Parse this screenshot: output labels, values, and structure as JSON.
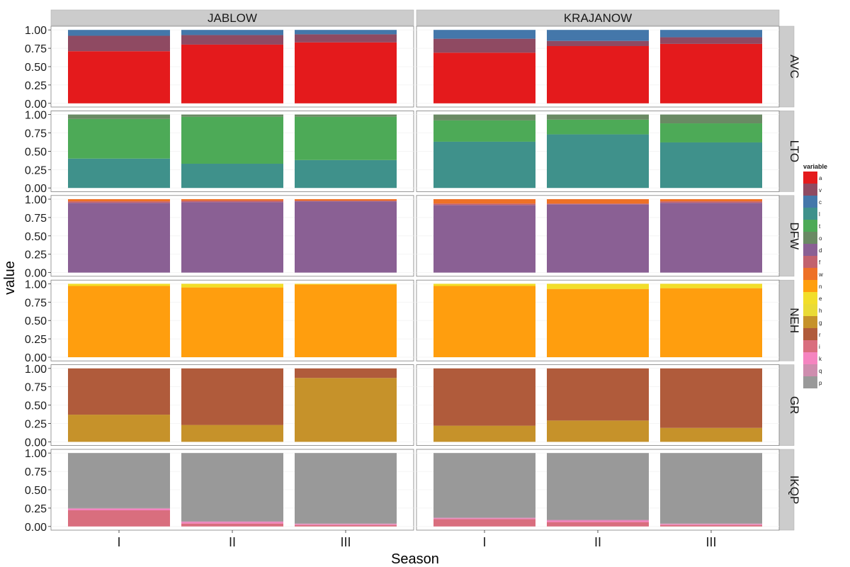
{
  "chart_data": {
    "type": "bar",
    "stacked": true,
    "xlabel": "Season",
    "ylabel": "value",
    "ylim": [
      0,
      1
    ],
    "yticks": [
      "0.00",
      "0.25",
      "0.50",
      "0.75",
      "1.00"
    ],
    "categories": [
      "I",
      "II",
      "III"
    ],
    "columns": [
      "JABLOW",
      "KRAJANOW"
    ],
    "rows": [
      "AVC",
      "LTO",
      "DFW",
      "NEH",
      "GR",
      "IKQP"
    ],
    "legend": {
      "title": "variable",
      "position": "right",
      "items": [
        {
          "name": "a",
          "color": "#E41A1C"
        },
        {
          "name": "v",
          "color": "#8F4A62"
        },
        {
          "name": "c",
          "color": "#4477AA"
        },
        {
          "name": "l",
          "color": "#3F918B"
        },
        {
          "name": "t",
          "color": "#4DAA57"
        },
        {
          "name": "o",
          "color": "#6A8A64"
        },
        {
          "name": "d",
          "color": "#8A6094"
        },
        {
          "name": "f",
          "color": "#C2626E"
        },
        {
          "name": "w",
          "color": "#EE7127"
        },
        {
          "name": "n",
          "color": "#FF9E0E"
        },
        {
          "name": "e",
          "color": "#F2DE2A"
        },
        {
          "name": "h",
          "color": "#EADB35"
        },
        {
          "name": "g",
          "color": "#C6922A"
        },
        {
          "name": "r",
          "color": "#B05B3B"
        },
        {
          "name": "i",
          "color": "#D96E7E"
        },
        {
          "name": "k",
          "color": "#F584C0"
        },
        {
          "name": "q",
          "color": "#CE8DAE"
        },
        {
          "name": "p",
          "color": "#999999"
        }
      ]
    },
    "panels": [
      {
        "row": "AVC",
        "col": "JABLOW",
        "bars": [
          {
            "category": "I",
            "stack": [
              [
                "a",
                0.71
              ],
              [
                "v",
                0.21
              ],
              [
                "c",
                0.08
              ]
            ]
          },
          {
            "category": "II",
            "stack": [
              [
                "a",
                0.8
              ],
              [
                "v",
                0.13
              ],
              [
                "c",
                0.07
              ]
            ]
          },
          {
            "category": "III",
            "stack": [
              [
                "a",
                0.83
              ],
              [
                "v",
                0.11
              ],
              [
                "c",
                0.06
              ]
            ]
          }
        ]
      },
      {
        "row": "AVC",
        "col": "KRAJANOW",
        "bars": [
          {
            "category": "I",
            "stack": [
              [
                "a",
                0.69
              ],
              [
                "v",
                0.19
              ],
              [
                "c",
                0.12
              ]
            ]
          },
          {
            "category": "II",
            "stack": [
              [
                "a",
                0.78
              ],
              [
                "v",
                0.07
              ],
              [
                "c",
                0.15
              ]
            ]
          },
          {
            "category": "III",
            "stack": [
              [
                "a",
                0.81
              ],
              [
                "v",
                0.09
              ],
              [
                "c",
                0.1
              ]
            ]
          }
        ]
      },
      {
        "row": "LTO",
        "col": "JABLOW",
        "bars": [
          {
            "category": "I",
            "stack": [
              [
                "l",
                0.4
              ],
              [
                "t",
                0.54
              ],
              [
                "o",
                0.06
              ]
            ]
          },
          {
            "category": "II",
            "stack": [
              [
                "l",
                0.33
              ],
              [
                "t",
                0.64
              ],
              [
                "o",
                0.03
              ]
            ]
          },
          {
            "category": "III",
            "stack": [
              [
                "l",
                0.38
              ],
              [
                "t",
                0.59
              ],
              [
                "o",
                0.03
              ]
            ]
          }
        ]
      },
      {
        "row": "LTO",
        "col": "KRAJANOW",
        "bars": [
          {
            "category": "I",
            "stack": [
              [
                "l",
                0.63
              ],
              [
                "t",
                0.29
              ],
              [
                "o",
                0.08
              ]
            ]
          },
          {
            "category": "II",
            "stack": [
              [
                "l",
                0.73
              ],
              [
                "t",
                0.2
              ],
              [
                "o",
                0.07
              ]
            ]
          },
          {
            "category": "III",
            "stack": [
              [
                "l",
                0.62
              ],
              [
                "t",
                0.26
              ],
              [
                "o",
                0.12
              ]
            ]
          }
        ]
      },
      {
        "row": "DFW",
        "col": "JABLOW",
        "bars": [
          {
            "category": "I",
            "stack": [
              [
                "d",
                0.95
              ],
              [
                "f",
                0.02
              ],
              [
                "w",
                0.03
              ]
            ]
          },
          {
            "category": "II",
            "stack": [
              [
                "d",
                0.96
              ],
              [
                "f",
                0.02
              ],
              [
                "w",
                0.02
              ]
            ]
          },
          {
            "category": "III",
            "stack": [
              [
                "d",
                0.97
              ],
              [
                "f",
                0.01
              ],
              [
                "w",
                0.02
              ]
            ]
          }
        ]
      },
      {
        "row": "DFW",
        "col": "KRAJANOW",
        "bars": [
          {
            "category": "I",
            "stack": [
              [
                "d",
                0.92
              ],
              [
                "f",
                0.02
              ],
              [
                "w",
                0.06
              ]
            ]
          },
          {
            "category": "II",
            "stack": [
              [
                "d",
                0.93
              ],
              [
                "f",
                0.01
              ],
              [
                "w",
                0.06
              ]
            ]
          },
          {
            "category": "III",
            "stack": [
              [
                "d",
                0.95
              ],
              [
                "f",
                0.02
              ],
              [
                "w",
                0.03
              ]
            ]
          }
        ]
      },
      {
        "row": "NEH",
        "col": "JABLOW",
        "bars": [
          {
            "category": "I",
            "stack": [
              [
                "n",
                0.97
              ],
              [
                "e",
                0.03
              ]
            ]
          },
          {
            "category": "II",
            "stack": [
              [
                "n",
                0.95
              ],
              [
                "e",
                0.05
              ]
            ]
          },
          {
            "category": "III",
            "stack": [
              [
                "n",
                0.99
              ],
              [
                "e",
                0.01
              ]
            ]
          }
        ]
      },
      {
        "row": "NEH",
        "col": "KRAJANOW",
        "bars": [
          {
            "category": "I",
            "stack": [
              [
                "n",
                0.97
              ],
              [
                "e",
                0.03
              ]
            ]
          },
          {
            "category": "II",
            "stack": [
              [
                "n",
                0.93
              ],
              [
                "e",
                0.07
              ]
            ]
          },
          {
            "category": "III",
            "stack": [
              [
                "n",
                0.94
              ],
              [
                "e",
                0.06
              ]
            ]
          }
        ]
      },
      {
        "row": "GR",
        "col": "JABLOW",
        "bars": [
          {
            "category": "I",
            "stack": [
              [
                "g",
                0.37
              ],
              [
                "r",
                0.63
              ]
            ]
          },
          {
            "category": "II",
            "stack": [
              [
                "g",
                0.23
              ],
              [
                "r",
                0.77
              ]
            ]
          },
          {
            "category": "III",
            "stack": [
              [
                "g",
                0.87
              ],
              [
                "r",
                0.13
              ]
            ]
          }
        ]
      },
      {
        "row": "GR",
        "col": "KRAJANOW",
        "bars": [
          {
            "category": "I",
            "stack": [
              [
                "g",
                0.22
              ],
              [
                "r",
                0.78
              ]
            ]
          },
          {
            "category": "II",
            "stack": [
              [
                "g",
                0.29
              ],
              [
                "r",
                0.71
              ]
            ]
          },
          {
            "category": "III",
            "stack": [
              [
                "g",
                0.19
              ],
              [
                "r",
                0.81
              ]
            ]
          }
        ]
      },
      {
        "row": "IKQP",
        "col": "JABLOW",
        "bars": [
          {
            "category": "I",
            "stack": [
              [
                "i",
                0.22
              ],
              [
                "k",
                0.02
              ],
              [
                "q",
                0.01
              ],
              [
                "p",
                0.75
              ]
            ]
          },
          {
            "category": "II",
            "stack": [
              [
                "i",
                0.04
              ],
              [
                "k",
                0.02
              ],
              [
                "q",
                0.01
              ],
              [
                "p",
                0.93
              ]
            ]
          },
          {
            "category": "III",
            "stack": [
              [
                "i",
                0.02
              ],
              [
                "k",
                0.01
              ],
              [
                "q",
                0.01
              ],
              [
                "p",
                0.96
              ]
            ]
          }
        ]
      },
      {
        "row": "IKQP",
        "col": "KRAJANOW",
        "bars": [
          {
            "category": "I",
            "stack": [
              [
                "i",
                0.1
              ],
              [
                "k",
                0.01
              ],
              [
                "q",
                0.01
              ],
              [
                "p",
                0.88
              ]
            ]
          },
          {
            "category": "II",
            "stack": [
              [
                "i",
                0.06
              ],
              [
                "k",
                0.02
              ],
              [
                "q",
                0.01
              ],
              [
                "p",
                0.91
              ]
            ]
          },
          {
            "category": "III",
            "stack": [
              [
                "i",
                0.02
              ],
              [
                "k",
                0.01
              ],
              [
                "q",
                0.01
              ],
              [
                "p",
                0.96
              ]
            ]
          }
        ]
      }
    ]
  }
}
